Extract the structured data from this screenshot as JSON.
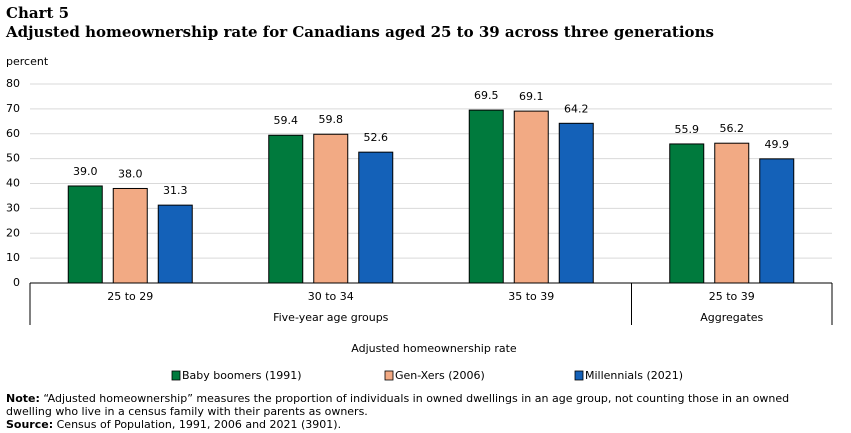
{
  "chart_data": {
    "type": "bar",
    "kicker": "Chart 5",
    "title": "Adjusted homeownership rate for Canadians aged 25 to 39 across three generations",
    "y_label": "percent",
    "x_label": "Adjusted homeownership rate",
    "categories": [
      "25 to 29",
      "30 to 34",
      "35 to 39",
      "25 to 39"
    ],
    "groups": [
      {
        "name": "Five-year age groups",
        "count": 3
      },
      {
        "name": "Aggregates",
        "count": 1
      }
    ],
    "series": [
      {
        "name": "Baby boomers (1991)",
        "color": "#007a3d",
        "values": [
          39.0,
          59.4,
          69.5,
          55.9
        ],
        "value_labels": [
          "39.0",
          "59.4",
          "69.5",
          "55.9"
        ]
      },
      {
        "name": "Gen-Xers (2006)",
        "color": "#f2aa84",
        "values": [
          38.0,
          59.8,
          69.1,
          56.2
        ],
        "value_labels": [
          "38.0",
          "59.8",
          "69.1",
          "56.2"
        ]
      },
      {
        "name": "Millennials (2021)",
        "color": "#1461b8",
        "values": [
          31.3,
          52.6,
          64.2,
          49.9
        ],
        "value_labels": [
          "31.3",
          "52.6",
          "64.2",
          "49.9"
        ]
      }
    ],
    "ylim": [
      0,
      80
    ],
    "yticks": [
      0,
      10,
      20,
      30,
      40,
      50,
      60,
      70,
      80
    ],
    "grid": true,
    "note": {
      "label": "Note:",
      "lines": [
        "“Adjusted homeownership” measures the proportion of individuals in owned dwellings in an age group, not counting those in an owned",
        "dwelling who live in a census family with their parents as owners."
      ]
    },
    "source": {
      "label": "Source:",
      "text": "Census of Population, 1991, 2006 and 2021 (3901)."
    }
  }
}
